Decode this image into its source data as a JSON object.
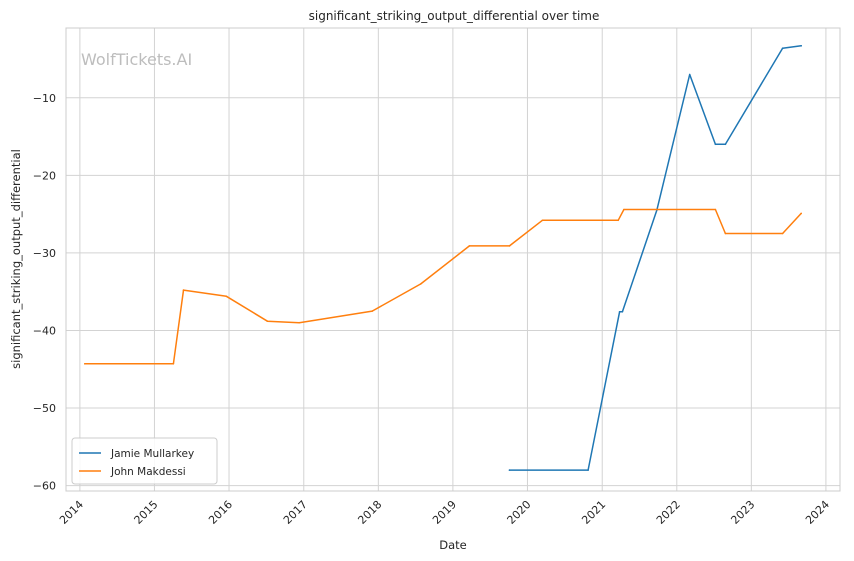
{
  "chart_data": {
    "type": "line",
    "title": "significant_striking_output_differential over time",
    "xlabel": "Date",
    "ylabel": "significant_striking_output_differential",
    "watermark": "WolfTickets.AI",
    "x_ticks": [
      "2014",
      "2015",
      "2016",
      "2017",
      "2018",
      "2019",
      "2020",
      "2021",
      "2022",
      "2023",
      "2024"
    ],
    "y_ticks": [
      -10,
      -20,
      -30,
      -40,
      -50,
      -60
    ],
    "y_tick_labels": [
      "−10",
      "−20",
      "−30",
      "−40",
      "−50",
      "−60"
    ],
    "xlim": [
      "2013-10-25",
      "2024-03-10"
    ],
    "ylim": [
      -60.7,
      -1.0
    ],
    "grid": true,
    "legend_position": "lower-left",
    "series": [
      {
        "name": "Jamie Mullarkey",
        "color": "#1f77b4",
        "points": [
          [
            "2019-10-05",
            -58.0
          ],
          [
            "2020-10-24",
            -58.0
          ],
          [
            "2021-03-27",
            -37.6
          ],
          [
            "2021-04-10",
            -37.6
          ],
          [
            "2021-09-25",
            -24.5
          ],
          [
            "2022-03-05",
            -7.0
          ],
          [
            "2022-07-09",
            -16.0
          ],
          [
            "2022-08-27",
            -16.0
          ],
          [
            "2023-06-03",
            -3.6
          ],
          [
            "2023-09-02",
            -3.3
          ]
        ]
      },
      {
        "name": "John Makdessi",
        "color": "#ff7f0e",
        "points": [
          [
            "2014-01-25",
            -44.3
          ],
          [
            "2015-04-04",
            -44.3
          ],
          [
            "2015-05-23",
            -34.8
          ],
          [
            "2015-12-19",
            -35.6
          ],
          [
            "2016-07-07",
            -38.8
          ],
          [
            "2016-12-10",
            -39.0
          ],
          [
            "2017-12-02",
            -37.5
          ],
          [
            "2018-07-28",
            -34.0
          ],
          [
            "2019-03-23",
            -29.1
          ],
          [
            "2019-10-05",
            -29.1
          ],
          [
            "2020-03-14",
            -25.8
          ],
          [
            "2021-03-20",
            -25.8
          ],
          [
            "2021-04-17",
            -24.4
          ],
          [
            "2022-07-09",
            -24.4
          ],
          [
            "2022-08-27",
            -27.5
          ],
          [
            "2023-06-03",
            -27.5
          ],
          [
            "2023-09-02",
            -24.9
          ]
        ]
      }
    ]
  }
}
